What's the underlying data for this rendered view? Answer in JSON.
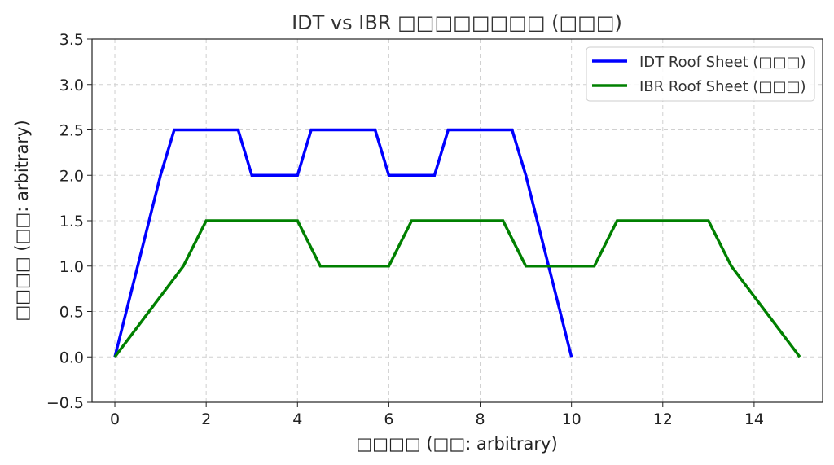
{
  "chart_data": {
    "type": "line",
    "title": "IDT vs IBR □□□□□□□□ (□□□)",
    "xlabel": "□□□□ (□□: arbitrary)",
    "ylabel": "□□□□ (□□: arbitrary)",
    "xlim": [
      -0.5,
      15.5
    ],
    "ylim": [
      -0.5,
      3.5
    ],
    "xticks": [
      0,
      2,
      4,
      6,
      8,
      10,
      12,
      14
    ],
    "yticks": [
      -0.5,
      0.0,
      0.5,
      1.0,
      1.5,
      2.0,
      2.5,
      3.0,
      3.5
    ],
    "ytick_labels": [
      "−0.5",
      "0.0",
      "0.5",
      "1.0",
      "1.5",
      "2.0",
      "2.5",
      "3.0",
      "3.5"
    ],
    "grid": true,
    "legend_position": "top-right",
    "series": [
      {
        "name": "IDT Roof Sheet (□□□)",
        "color": "#0000ff",
        "x": [
          0,
          1,
          1.3,
          2.7,
          3,
          4,
          4.3,
          5.7,
          6,
          7,
          7.3,
          8.7,
          9,
          10
        ],
        "y": [
          0,
          2,
          2.5,
          2.5,
          2,
          2,
          2.5,
          2.5,
          2,
          2,
          2.5,
          2.5,
          2,
          0
        ]
      },
      {
        "name": "IBR Roof Sheet (□□□)",
        "color": "#008000",
        "x": [
          0,
          1.5,
          2,
          4,
          4.5,
          6,
          6.5,
          8.5,
          9,
          10.5,
          11,
          13,
          13.5,
          15
        ],
        "y": [
          0,
          1,
          1.5,
          1.5,
          1,
          1,
          1.5,
          1.5,
          1,
          1,
          1.5,
          1.5,
          1,
          0
        ]
      }
    ]
  }
}
